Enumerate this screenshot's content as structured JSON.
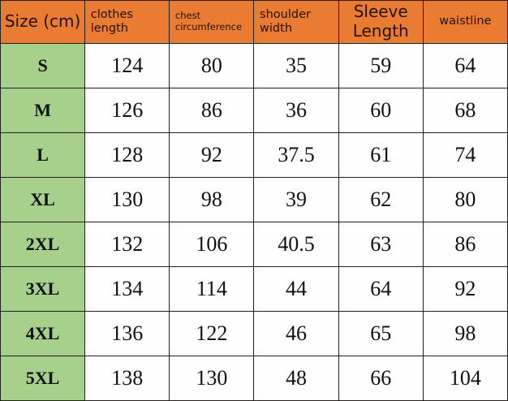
{
  "title": "Size (cm)",
  "colors": {
    "header_bg": "#e97b33",
    "size_col_bg": "#a7d08c",
    "border": "#24201a",
    "header_text": "#241307",
    "value_text": "#121212"
  },
  "chart_data": {
    "type": "table",
    "title": "Size (cm)",
    "unit": "cm",
    "columns": [
      "Size (cm)",
      "clothes length",
      "chest circumference",
      "shoulder width",
      "Sleeve Length",
      "waistline"
    ],
    "rows": [
      [
        "S",
        124,
        80,
        35,
        59,
        64
      ],
      [
        "M",
        126,
        86,
        36,
        60,
        68
      ],
      [
        "L",
        128,
        92,
        37.5,
        61,
        74
      ],
      [
        "XL",
        130,
        98,
        39,
        62,
        80
      ],
      [
        "2XL",
        132,
        106,
        40.5,
        63,
        86
      ],
      [
        "3XL",
        134,
        114,
        44,
        64,
        92
      ],
      [
        "4XL",
        136,
        122,
        46,
        65,
        98
      ],
      [
        "5XL",
        138,
        130,
        48,
        66,
        104
      ]
    ]
  }
}
